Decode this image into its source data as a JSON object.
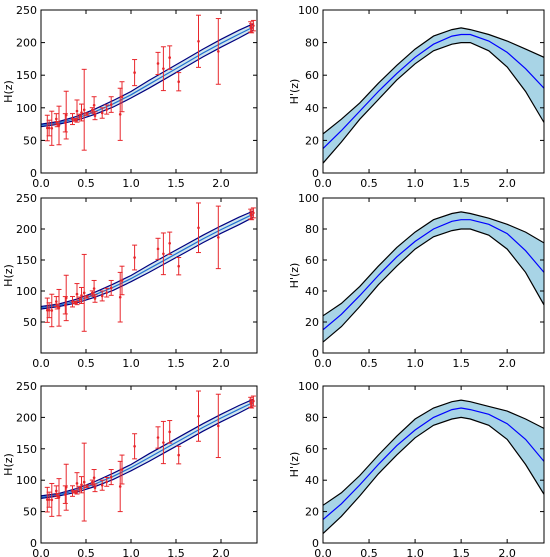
{
  "colors": {
    "frame": "#000000",
    "errorbar": "#e8272c",
    "band_fill_left": "#cfe6ee",
    "band_edge_left": "#000080",
    "band_mid_left": "#1f6fd0",
    "band_fill_right": "#a8d4e6",
    "band_edge_right": "#000000",
    "band_mid_right": "#0000ff"
  },
  "chart_data": [
    {
      "type": "line",
      "panel": "H-row1",
      "xlabel": "",
      "ylabel": "H(z)",
      "xlim": [
        0,
        2.4
      ],
      "ylim": [
        0,
        250
      ],
      "xticks": [
        0.0,
        0.5,
        1.0,
        1.5,
        2.0
      ],
      "xtick_labels": [
        "0.0",
        "0.5",
        "1.0",
        "1.5",
        "2.0"
      ],
      "yticks": [
        0,
        50,
        100,
        150,
        200,
        250
      ],
      "ytick_labels": [
        "0",
        "50",
        "100",
        "150",
        "200",
        "250"
      ],
      "band": {
        "x": [
          0.0,
          0.2,
          0.4,
          0.6,
          0.8,
          1.0,
          1.2,
          1.4,
          1.6,
          1.8,
          2.0,
          2.2,
          2.36
        ],
        "mid": [
          73,
          77,
          84,
          94,
          106,
          120,
          136,
          152,
          168,
          184,
          199,
          213,
          224
        ],
        "lower": [
          71,
          75,
          81,
          90,
          101,
          115,
          130,
          146,
          162,
          178,
          193,
          207,
          219
        ],
        "upper": [
          75,
          79,
          87,
          98,
          111,
          125,
          142,
          158,
          174,
          190,
          205,
          219,
          229
        ]
      },
      "points": [
        {
          "x": 0.07,
          "y": 69,
          "err": 19.6
        },
        {
          "x": 0.09,
          "y": 69,
          "err": 12
        },
        {
          "x": 0.12,
          "y": 68.6,
          "err": 26.2
        },
        {
          "x": 0.17,
          "y": 83,
          "err": 8
        },
        {
          "x": 0.18,
          "y": 75,
          "err": 4
        },
        {
          "x": 0.2,
          "y": 72.9,
          "err": 29.6
        },
        {
          "x": 0.27,
          "y": 77,
          "err": 14
        },
        {
          "x": 0.28,
          "y": 88.8,
          "err": 36.6
        },
        {
          "x": 0.35,
          "y": 82.7,
          "err": 8.4
        },
        {
          "x": 0.38,
          "y": 81.5,
          "err": 1.9
        },
        {
          "x": 0.4,
          "y": 95,
          "err": 17
        },
        {
          "x": 0.43,
          "y": 86.5,
          "err": 3.7
        },
        {
          "x": 0.45,
          "y": 92.8,
          "err": 12.9
        },
        {
          "x": 0.48,
          "y": 97,
          "err": 62
        },
        {
          "x": 0.51,
          "y": 90.4,
          "err": 1.9
        },
        {
          "x": 0.57,
          "y": 96.8,
          "err": 3.4
        },
        {
          "x": 0.59,
          "y": 104,
          "err": 13
        },
        {
          "x": 0.6,
          "y": 87.9,
          "err": 6.1
        },
        {
          "x": 0.68,
          "y": 92,
          "err": 8
        },
        {
          "x": 0.73,
          "y": 97.3,
          "err": 7
        },
        {
          "x": 0.78,
          "y": 105,
          "err": 12
        },
        {
          "x": 0.88,
          "y": 90,
          "err": 40
        },
        {
          "x": 0.9,
          "y": 117,
          "err": 23
        },
        {
          "x": 1.04,
          "y": 154,
          "err": 20
        },
        {
          "x": 1.3,
          "y": 168,
          "err": 17
        },
        {
          "x": 1.36,
          "y": 160,
          "err": 33.6
        },
        {
          "x": 1.43,
          "y": 177,
          "err": 18
        },
        {
          "x": 1.53,
          "y": 140,
          "err": 14
        },
        {
          "x": 1.75,
          "y": 202,
          "err": 40
        },
        {
          "x": 1.97,
          "y": 186.5,
          "err": 50.4
        },
        {
          "x": 2.33,
          "y": 224,
          "err": 8
        },
        {
          "x": 2.34,
          "y": 222,
          "err": 7
        },
        {
          "x": 2.36,
          "y": 226,
          "err": 8
        }
      ]
    },
    {
      "type": "area",
      "panel": "dH-row1",
      "xlabel": "",
      "ylabel": "H'(z)",
      "xlim": [
        0,
        2.4
      ],
      "ylim": [
        0,
        100
      ],
      "xticks": [
        0.0,
        0.5,
        1.0,
        1.5,
        2.0
      ],
      "xtick_labels": [
        "0.0",
        "0.5",
        "1.0",
        "1.5",
        "2.0"
      ],
      "yticks": [
        0,
        20,
        40,
        60,
        80,
        100
      ],
      "ytick_labels": [
        "0",
        "20",
        "40",
        "60",
        "80",
        "100"
      ],
      "band": {
        "x": [
          0.0,
          0.2,
          0.4,
          0.6,
          0.8,
          1.0,
          1.2,
          1.4,
          1.5,
          1.6,
          1.8,
          2.0,
          2.2,
          2.4
        ],
        "mid": [
          15,
          26,
          38,
          50,
          61,
          71,
          79,
          84,
          85,
          85,
          81,
          74,
          64,
          52
        ],
        "lower": [
          6,
          19,
          33,
          45,
          57,
          67,
          75,
          79,
          80,
          80,
          75,
          65,
          50,
          31
        ],
        "upper": [
          24,
          33,
          43,
          55,
          66,
          76,
          84,
          88,
          89,
          88,
          85,
          81,
          76,
          71
        ]
      }
    },
    {
      "type": "line",
      "panel": "H-row2",
      "xlabel": "",
      "ylabel": "H(z)",
      "xlim": [
        0,
        2.4
      ],
      "ylim": [
        0,
        250
      ],
      "xticks": [
        0.0,
        0.5,
        1.0,
        1.5,
        2.0
      ],
      "xtick_labels": [
        "0.0",
        "0.5",
        "1.0",
        "1.5",
        "2.0"
      ],
      "yticks": [
        50,
        100,
        150,
        200,
        250
      ],
      "ytick_labels": [
        "50",
        "100",
        "150",
        "200",
        "250"
      ],
      "band": {
        "x": [
          0.0,
          0.2,
          0.4,
          0.6,
          0.8,
          1.0,
          1.2,
          1.4,
          1.6,
          1.8,
          2.0,
          2.2,
          2.36
        ],
        "mid": [
          73,
          77,
          84,
          94,
          106,
          120,
          136,
          152,
          168,
          184,
          199,
          213,
          224
        ],
        "lower": [
          71,
          75,
          81,
          90,
          101,
          115,
          130,
          146,
          162,
          178,
          193,
          207,
          219
        ],
        "upper": [
          75,
          79,
          87,
          98,
          111,
          125,
          142,
          158,
          174,
          190,
          205,
          219,
          229
        ]
      },
      "points": [
        {
          "x": 0.07,
          "y": 69,
          "err": 19.6
        },
        {
          "x": 0.09,
          "y": 69,
          "err": 12
        },
        {
          "x": 0.12,
          "y": 68.6,
          "err": 26.2
        },
        {
          "x": 0.17,
          "y": 83,
          "err": 8
        },
        {
          "x": 0.18,
          "y": 75,
          "err": 4
        },
        {
          "x": 0.2,
          "y": 72.9,
          "err": 29.6
        },
        {
          "x": 0.27,
          "y": 77,
          "err": 14
        },
        {
          "x": 0.28,
          "y": 88.8,
          "err": 36.6
        },
        {
          "x": 0.35,
          "y": 82.7,
          "err": 8.4
        },
        {
          "x": 0.38,
          "y": 81.5,
          "err": 1.9
        },
        {
          "x": 0.4,
          "y": 95,
          "err": 17
        },
        {
          "x": 0.43,
          "y": 86.5,
          "err": 3.7
        },
        {
          "x": 0.45,
          "y": 92.8,
          "err": 12.9
        },
        {
          "x": 0.48,
          "y": 97,
          "err": 62
        },
        {
          "x": 0.51,
          "y": 90.4,
          "err": 1.9
        },
        {
          "x": 0.57,
          "y": 96.8,
          "err": 3.4
        },
        {
          "x": 0.59,
          "y": 104,
          "err": 13
        },
        {
          "x": 0.6,
          "y": 87.9,
          "err": 6.1
        },
        {
          "x": 0.68,
          "y": 92,
          "err": 8
        },
        {
          "x": 0.73,
          "y": 97.3,
          "err": 7
        },
        {
          "x": 0.78,
          "y": 105,
          "err": 12
        },
        {
          "x": 0.88,
          "y": 90,
          "err": 40
        },
        {
          "x": 0.9,
          "y": 117,
          "err": 23
        },
        {
          "x": 1.04,
          "y": 154,
          "err": 20
        },
        {
          "x": 1.3,
          "y": 168,
          "err": 17
        },
        {
          "x": 1.36,
          "y": 160,
          "err": 33.6
        },
        {
          "x": 1.43,
          "y": 177,
          "err": 18
        },
        {
          "x": 1.53,
          "y": 140,
          "err": 14
        },
        {
          "x": 1.75,
          "y": 202,
          "err": 40
        },
        {
          "x": 1.97,
          "y": 186.5,
          "err": 50.4
        },
        {
          "x": 2.33,
          "y": 224,
          "err": 8
        },
        {
          "x": 2.34,
          "y": 222,
          "err": 7
        },
        {
          "x": 2.36,
          "y": 226,
          "err": 8
        }
      ]
    },
    {
      "type": "area",
      "panel": "dH-row2",
      "xlabel": "",
      "ylabel": "H'(z)",
      "xlim": [
        0,
        2.4
      ],
      "ylim": [
        0,
        100
      ],
      "xticks": [
        0.0,
        0.5,
        1.0,
        1.5,
        2.0
      ],
      "xtick_labels": [
        "0.0",
        "0.5",
        "1.0",
        "1.5",
        "2.0"
      ],
      "yticks": [
        0,
        20,
        40,
        60,
        80,
        100
      ],
      "ytick_labels": [
        "0",
        "20",
        "40",
        "60",
        "80",
        "100"
      ],
      "band": {
        "x": [
          0.0,
          0.2,
          0.4,
          0.6,
          0.8,
          1.0,
          1.2,
          1.4,
          1.5,
          1.6,
          1.8,
          2.0,
          2.2,
          2.4
        ],
        "mid": [
          15,
          25,
          37,
          50,
          62,
          72,
          80,
          85,
          86,
          86,
          83,
          77,
          66,
          52
        ],
        "lower": [
          7,
          17,
          30,
          44,
          56,
          67,
          75,
          79,
          80,
          80,
          76,
          67,
          52,
          31
        ],
        "upper": [
          24,
          32,
          43,
          56,
          68,
          78,
          86,
          90,
          91,
          90,
          87,
          83,
          78,
          71
        ]
      }
    },
    {
      "type": "line",
      "panel": "H-row3",
      "xlabel": "",
      "ylabel": "H(z)",
      "xlim": [
        0,
        2.4
      ],
      "ylim": [
        0,
        250
      ],
      "xticks": [
        0.0,
        0.5,
        1.0,
        1.5,
        2.0
      ],
      "xtick_labels": [
        "0.0",
        "0.5",
        "1.0",
        "1.5",
        "2.0"
      ],
      "yticks": [
        0,
        50,
        100,
        150,
        200,
        250
      ],
      "ytick_labels": [
        "0",
        "50",
        "100",
        "150",
        "200",
        "250"
      ],
      "band": {
        "x": [
          0.0,
          0.2,
          0.4,
          0.6,
          0.8,
          1.0,
          1.2,
          1.4,
          1.6,
          1.8,
          2.0,
          2.2,
          2.36
        ],
        "mid": [
          73,
          77,
          84,
          94,
          106,
          120,
          136,
          152,
          168,
          184,
          199,
          213,
          224
        ],
        "lower": [
          71,
          75,
          81,
          90,
          101,
          115,
          130,
          146,
          162,
          178,
          193,
          207,
          219
        ],
        "upper": [
          75,
          79,
          87,
          98,
          111,
          125,
          142,
          158,
          174,
          190,
          205,
          219,
          229
        ]
      },
      "points": [
        {
          "x": 0.07,
          "y": 69,
          "err": 19.6
        },
        {
          "x": 0.09,
          "y": 69,
          "err": 12
        },
        {
          "x": 0.12,
          "y": 68.6,
          "err": 26.2
        },
        {
          "x": 0.17,
          "y": 83,
          "err": 8
        },
        {
          "x": 0.18,
          "y": 75,
          "err": 4
        },
        {
          "x": 0.2,
          "y": 72.9,
          "err": 29.6
        },
        {
          "x": 0.27,
          "y": 77,
          "err": 14
        },
        {
          "x": 0.28,
          "y": 88.8,
          "err": 36.6
        },
        {
          "x": 0.35,
          "y": 82.7,
          "err": 8.4
        },
        {
          "x": 0.38,
          "y": 81.5,
          "err": 1.9
        },
        {
          "x": 0.4,
          "y": 95,
          "err": 17
        },
        {
          "x": 0.43,
          "y": 86.5,
          "err": 3.7
        },
        {
          "x": 0.45,
          "y": 92.8,
          "err": 12.9
        },
        {
          "x": 0.48,
          "y": 97,
          "err": 62
        },
        {
          "x": 0.51,
          "y": 90.4,
          "err": 1.9
        },
        {
          "x": 0.57,
          "y": 96.8,
          "err": 3.4
        },
        {
          "x": 0.59,
          "y": 104,
          "err": 13
        },
        {
          "x": 0.6,
          "y": 87.9,
          "err": 6.1
        },
        {
          "x": 0.68,
          "y": 92,
          "err": 8
        },
        {
          "x": 0.73,
          "y": 97.3,
          "err": 7
        },
        {
          "x": 0.78,
          "y": 105,
          "err": 12
        },
        {
          "x": 0.88,
          "y": 90,
          "err": 40
        },
        {
          "x": 0.9,
          "y": 117,
          "err": 23
        },
        {
          "x": 1.04,
          "y": 154,
          "err": 20
        },
        {
          "x": 1.3,
          "y": 168,
          "err": 17
        },
        {
          "x": 1.36,
          "y": 160,
          "err": 33.6
        },
        {
          "x": 1.43,
          "y": 177,
          "err": 18
        },
        {
          "x": 1.53,
          "y": 140,
          "err": 14
        },
        {
          "x": 1.75,
          "y": 202,
          "err": 40
        },
        {
          "x": 1.97,
          "y": 186.5,
          "err": 50.4
        },
        {
          "x": 2.33,
          "y": 224,
          "err": 8
        },
        {
          "x": 2.34,
          "y": 222,
          "err": 7
        },
        {
          "x": 2.36,
          "y": 226,
          "err": 8
        }
      ]
    },
    {
      "type": "area",
      "panel": "dH-row3",
      "xlabel": "",
      "ylabel": "H'(z)",
      "xlim": [
        0,
        2.4
      ],
      "ylim": [
        0,
        100
      ],
      "xticks": [
        0.0,
        0.5,
        1.0,
        1.5,
        2.0
      ],
      "xtick_labels": [
        "0.0",
        "0.5",
        "1.0",
        "1.5",
        "2.0"
      ],
      "yticks": [
        0,
        20,
        40,
        60,
        80,
        100
      ],
      "ytick_labels": [
        "0",
        "20",
        "40",
        "60",
        "80",
        "100"
      ],
      "band": {
        "x": [
          0.0,
          0.2,
          0.4,
          0.6,
          0.8,
          1.0,
          1.2,
          1.4,
          1.5,
          1.6,
          1.8,
          2.0,
          2.2,
          2.4
        ],
        "mid": [
          15,
          25,
          37,
          50,
          62,
          72,
          80,
          85,
          86,
          85,
          82,
          76,
          66,
          52
        ],
        "lower": [
          6,
          17,
          30,
          44,
          56,
          67,
          75,
          79,
          80,
          79,
          75,
          66,
          50,
          31
        ],
        "upper": [
          24,
          32,
          43,
          56,
          68,
          79,
          86,
          90,
          91,
          90,
          87,
          84,
          79,
          73
        ]
      }
    }
  ]
}
